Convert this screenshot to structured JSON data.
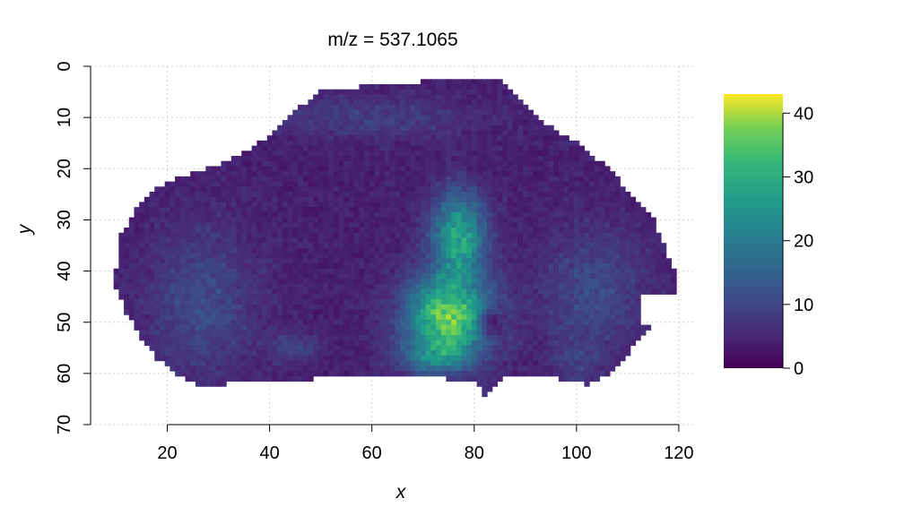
{
  "chart_data": {
    "type": "heatmap",
    "title": "m/z = 537.1065",
    "xlabel": "x",
    "ylabel": "y",
    "xlim": [
      5,
      123
    ],
    "ylim": [
      70,
      0
    ],
    "x_ticks": [
      20,
      40,
      60,
      80,
      100,
      120
    ],
    "y_ticks": [
      0,
      10,
      20,
      30,
      40,
      50,
      60,
      70
    ],
    "grid": true,
    "colorscale": "viridis",
    "colorbar": {
      "range": [
        0,
        43
      ],
      "ticks": [
        0,
        10,
        20,
        30,
        40
      ]
    },
    "regions": [
      {
        "name": "tissue-section",
        "x_range": [
          10,
          120
        ],
        "y_range": [
          5,
          66
        ],
        "approx_intensity": 3
      },
      {
        "name": "high-intensity-region",
        "center": [
          75,
          45
        ],
        "x_range": [
          64,
          87
        ],
        "y_range": [
          23,
          60
        ],
        "approx_intensity": 35
      },
      {
        "name": "medium-intensity-border-left",
        "center": [
          30,
          45
        ],
        "approx_intensity": 12
      },
      {
        "name": "medium-intensity-border-right",
        "center": [
          105,
          45
        ],
        "approx_intensity": 12
      }
    ]
  }
}
